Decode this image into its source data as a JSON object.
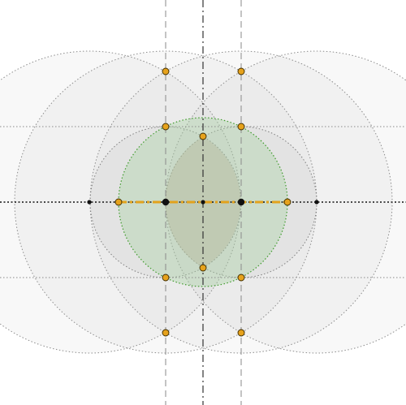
{
  "colors": {
    "background": "#ffffff",
    "outer_circle_fill": "#9a9a9a",
    "outer_circle_stroke": "#8c8c8c",
    "inner_circle_fill": "#8f8f8f",
    "green_circle_fill": "#a9d3a4",
    "green_circle_stroke": "#3f9a2c",
    "vesica_fill": "#b7b28f",
    "guide_line": "#8a8a8a",
    "center_line": "#333333",
    "axis_line": "#111111",
    "segment": "#e2a21c",
    "point_fill": "#e6a21c",
    "point_stroke": "#3a2a00",
    "node_fill": "#111111"
  },
  "icons": {
    "construction_point": "orange-dot",
    "node": "black-dot"
  },
  "labels": []
}
